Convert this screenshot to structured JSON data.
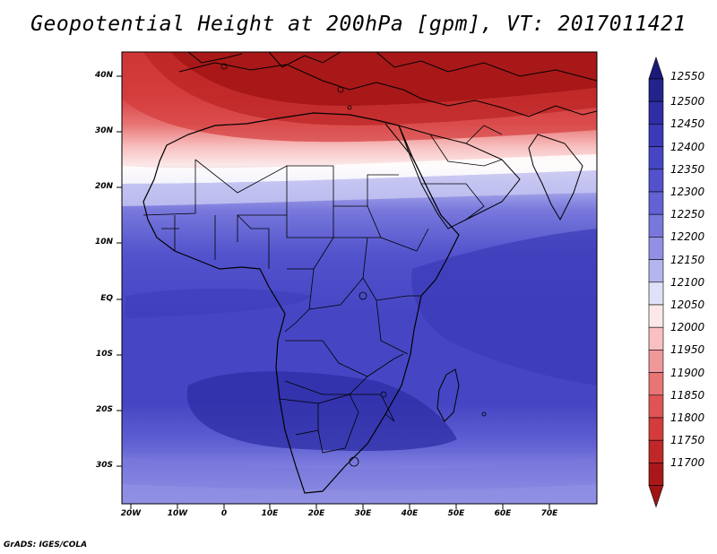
{
  "title": "Geopotential Height at 200hPa [gpm], VT: 2017011421",
  "footer": "GrADS: IGES/COLA",
  "lat_labels": [
    "40N",
    "30N",
    "20N",
    "10N",
    "EQ",
    "10S",
    "20S",
    "30S"
  ],
  "lon_labels": [
    "20W",
    "10W",
    "0",
    "10E",
    "20E",
    "30E",
    "40E",
    "50E",
    "60E",
    "70E"
  ],
  "colorbar": {
    "levels": [
      "12550",
      "12500",
      "12450",
      "12400",
      "12350",
      "12300",
      "12250",
      "12200",
      "12150",
      "12100",
      "12050",
      "12000",
      "11950",
      "11900",
      "11850",
      "11800",
      "11750",
      "11700"
    ],
    "colors": [
      "#23238c",
      "#2e2ea5",
      "#3a3ab8",
      "#4646c4",
      "#5252cc",
      "#6262d4",
      "#7878dc",
      "#9090e4",
      "#b4b4ee",
      "#e0e0f8",
      "#fce8e8",
      "#f8c0c0",
      "#f09898",
      "#e87474",
      "#e05454",
      "#d43c3c",
      "#c02828",
      "#a81818"
    ],
    "top_arrow_color": "#1a1a7a",
    "bottom_arrow_color": "#a01414"
  },
  "field": {
    "min_value": 11700,
    "max_value": 12550,
    "units": "gpm"
  }
}
